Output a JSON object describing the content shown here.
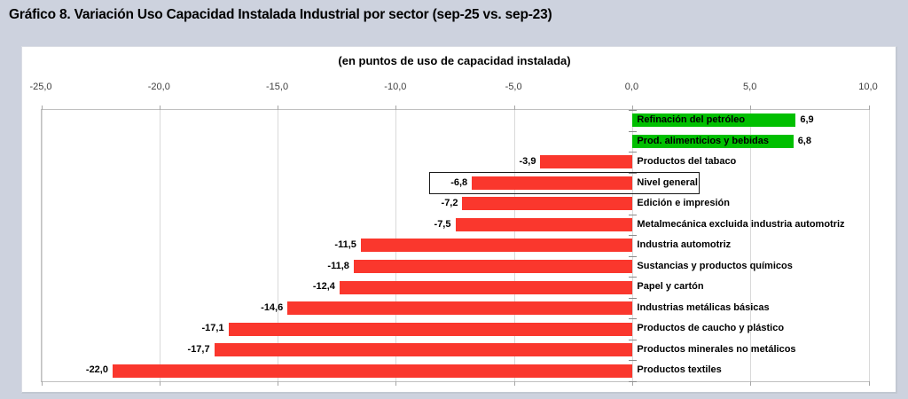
{
  "page": {
    "title": "Gráfico 8. Variación Uso Capacidad Instalada Industrial por sector (sep-25 vs. sep-23)"
  },
  "chart": {
    "subtitle": "(en puntos de uso de capacidad instalada)"
  },
  "colors": {
    "page_background": "#cdd2de",
    "panel_background": "#ffffff",
    "positive_bar": "#00bf00",
    "negative_bar": "#fa372d",
    "gridline": "#d9d9d9",
    "plot_border": "#c0c0c0",
    "axis_label": "#404040",
    "highlight_border": "#1a1a1a"
  },
  "chart_data": {
    "type": "bar",
    "orientation": "horizontal",
    "title": "Gráfico 8. Variación Uso Capacidad Instalada Industrial por sector (sep-25 vs. sep-23)",
    "subtitle": "(en puntos de uso de capacidad instalada)",
    "xlabel": "",
    "ylabel": "",
    "xlim": [
      -25,
      10
    ],
    "x_ticks": [
      -25,
      -20,
      -15,
      -10,
      -5,
      0,
      5,
      10
    ],
    "x_tick_labels": [
      "-25,0",
      "-20,0",
      "-15,0",
      "-10,0",
      "-5,0",
      "0,0",
      "5,0",
      "10,0"
    ],
    "grid": "vertical-only",
    "legend": false,
    "decimal_style": "comma",
    "categories": [
      "Refinación del petróleo",
      "Prod. alimenticios y bebidas",
      "Productos del tabaco",
      "Nivel general",
      "Edición e impresión",
      "Metalmecánica excluida industria automotriz",
      "Industria automotriz",
      "Sustancias y productos químicos",
      "Papel y cartón",
      "Industrias metálicas básicas",
      "Productos de caucho y plástico",
      "Productos minerales no metálicos",
      "Productos textiles"
    ],
    "values": [
      6.9,
      6.8,
      -3.9,
      -6.8,
      -7.2,
      -7.5,
      -11.5,
      -11.8,
      -12.4,
      -14.6,
      -17.1,
      -17.7,
      -22.0
    ],
    "value_labels": [
      "6,9",
      "6,8",
      "-3,9",
      "-6,8",
      "-7,2",
      "-7,5",
      "-11,5",
      "-11,8",
      "-12,4",
      "-14,6",
      "-17,1",
      "-17,7",
      "-22,0"
    ],
    "highlighted_category": "Nivel general",
    "positive_color": "#00bf00",
    "negative_color": "#fa372d"
  }
}
